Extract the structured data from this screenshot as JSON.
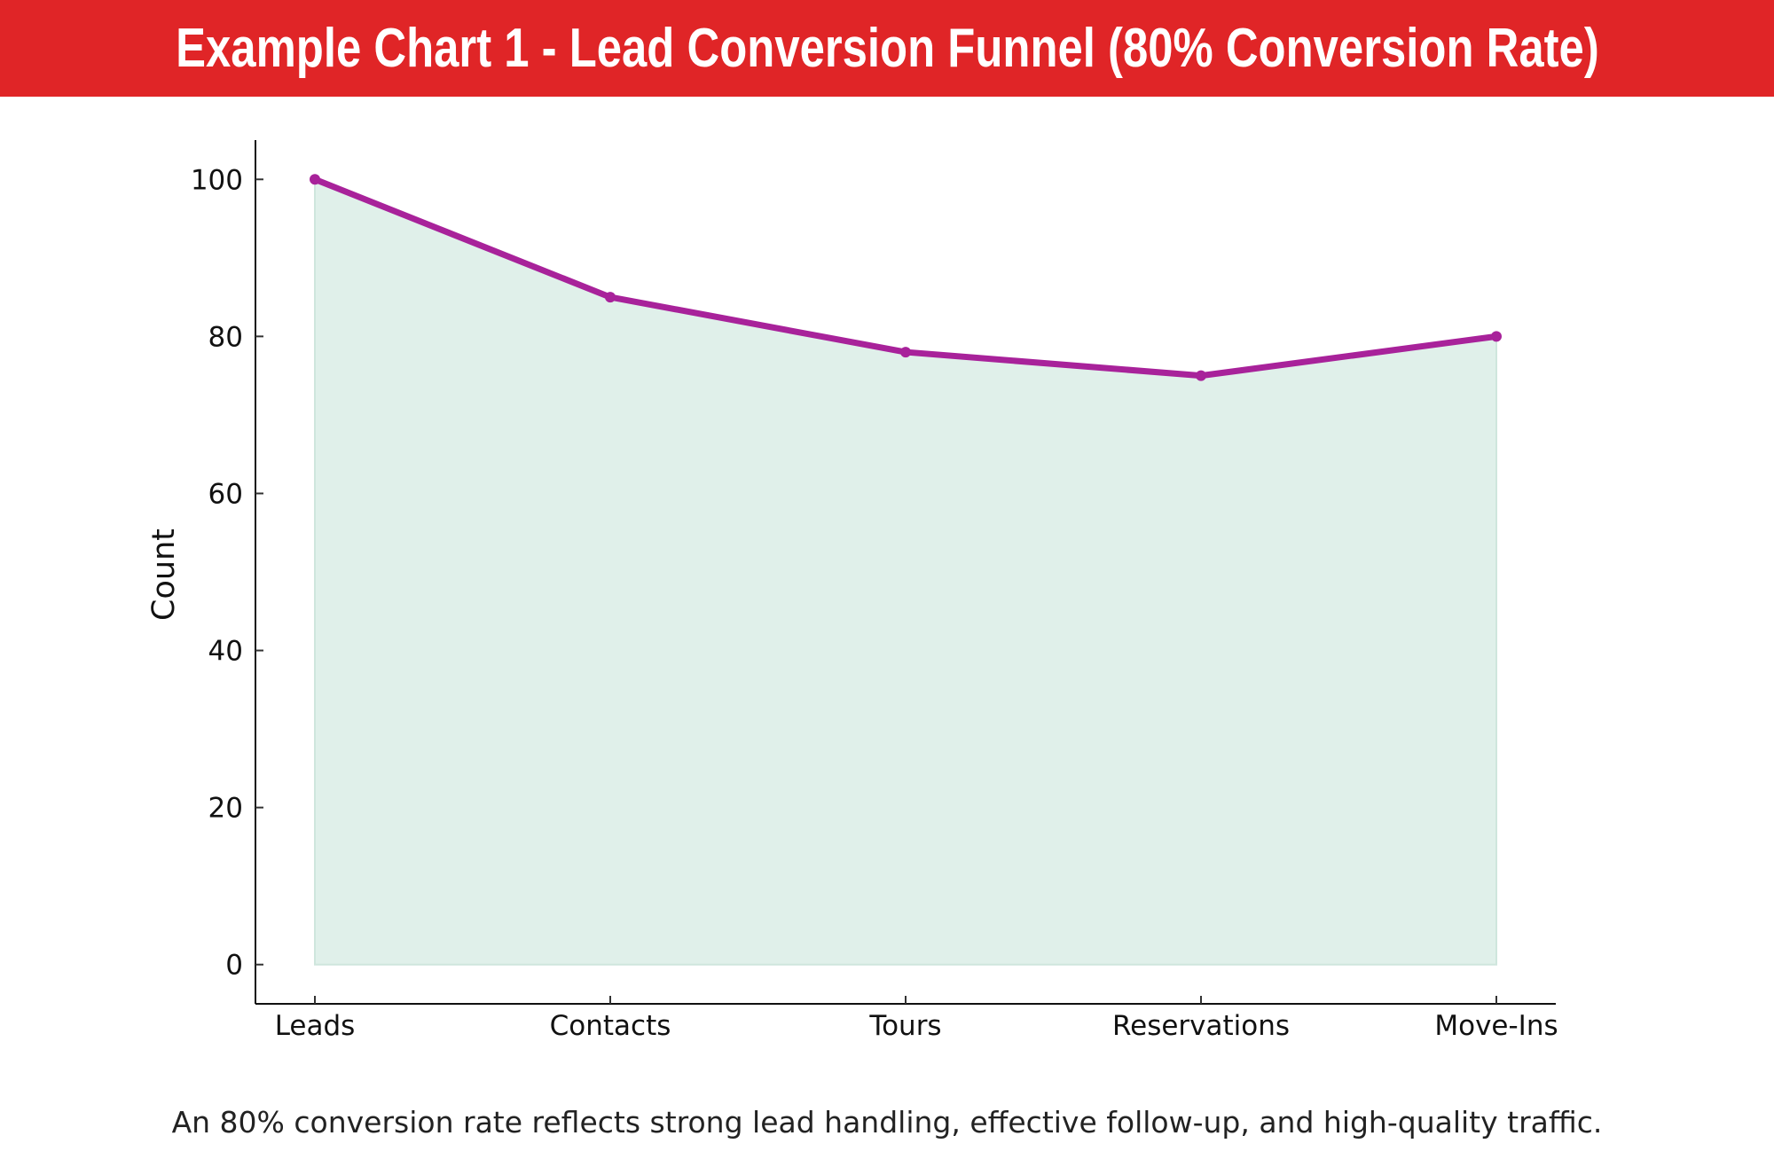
{
  "title": "Example Chart 1 - Lead Conversion Funnel (80% Conversion Rate)",
  "caption": "An 80% conversion rate reflects strong lead handling, effective follow-up, and high-quality traffic.",
  "colors": {
    "title_bar": "#e02527",
    "line": "#a8229a",
    "fill": "#e0f0ea"
  },
  "chart_data": {
    "type": "area",
    "title": "Example Chart 1 - Lead Conversion Funnel (80% Conversion Rate)",
    "xlabel": "",
    "ylabel": "Count",
    "categories": [
      "Leads",
      "Contacts",
      "Tours",
      "Reservations",
      "Move-Ins"
    ],
    "values": [
      100,
      85,
      78,
      75,
      80
    ],
    "ylim": [
      -5,
      105
    ],
    "yticks": [
      0,
      20,
      40,
      60,
      80,
      100
    ],
    "grid": false,
    "markers": true
  }
}
